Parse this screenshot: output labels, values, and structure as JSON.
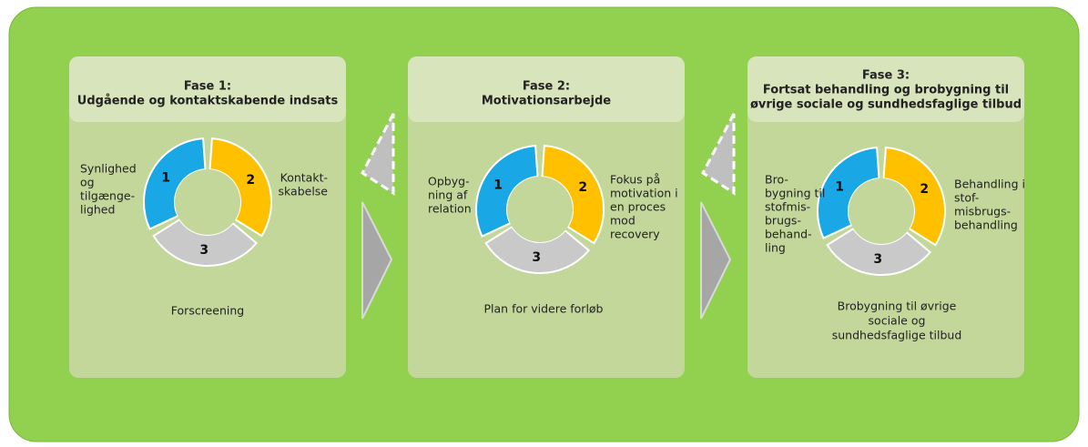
{
  "phases": [
    {
      "title": [
        "Fase 1:",
        "Udgående og kontaktskabende indsats"
      ],
      "numbers": [
        1,
        2,
        3
      ],
      "left": [
        "Synlighed",
        "og",
        "tilgænge-",
        "lighed"
      ],
      "right": [
        "Kontakt-",
        "skabelse"
      ],
      "bottom": [
        "Forscreening"
      ]
    },
    {
      "title": [
        "Fase 2:",
        "Motivationsarbejde"
      ],
      "numbers": [
        1,
        2,
        3
      ],
      "left": [
        "Opbyg-",
        "ning af",
        "relation"
      ],
      "right": [
        "Fokus på",
        "motivation i",
        "en proces",
        "mod",
        "recovery"
      ],
      "bottom": [
        "Plan for videre forløb"
      ]
    },
    {
      "title": [
        "Fase 3:",
        "Fortsat behandling og brobygning  til",
        "øvrige sociale og sundhedsfaglige tilbud"
      ],
      "numbers": [
        1,
        2,
        3
      ],
      "left": [
        "Bro-",
        "bygning til",
        "stofmis-",
        "brugs-",
        "behand-",
        "ling"
      ],
      "right": [
        "Behandling i",
        "stof-",
        "misbrugs-",
        "behandling"
      ],
      "bottom": [
        "Brobygning til øvrige",
        "sociale og",
        "sundhedsfaglige tilbud"
      ]
    }
  ]
}
